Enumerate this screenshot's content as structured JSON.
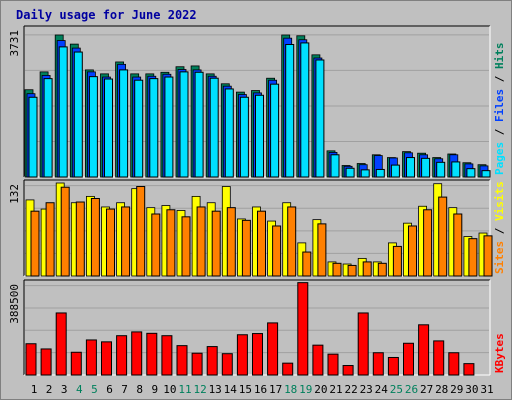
{
  "title": "Daily usage for June 2022",
  "colors": {
    "background": "#c0c0c0",
    "title": "#0000a0",
    "hits": "#00805c",
    "files": "#0040ff",
    "pages": "#00e0ff",
    "visits": "#ffff00",
    "sites": "#ff8000",
    "kbytes": "#ff0000",
    "weekday_label": "#000000",
    "weekend_label": "#00805c"
  },
  "chart_data": [
    {
      "type": "bar",
      "panel": "hits-files-pages",
      "ymax_label": "3731",
      "ylim": [
        0,
        3731
      ],
      "grid": true,
      "series_labels": [
        "Pages",
        "Files",
        "Hits"
      ],
      "series": [
        {
          "name": "Hits",
          "values": [
            2200,
            2650,
            3580,
            3350,
            2700,
            2600,
            2900,
            2600,
            2600,
            2640,
            2780,
            2800,
            2600,
            2350,
            2140,
            2180,
            2490,
            3580,
            3560,
            3080,
            660,
            290,
            340,
            560,
            490,
            640,
            600,
            490,
            580,
            360,
            310
          ]
        },
        {
          "name": "Files",
          "values": [
            2100,
            2560,
            3440,
            3250,
            2650,
            2520,
            2840,
            2520,
            2540,
            2590,
            2710,
            2700,
            2540,
            2290,
            2080,
            2120,
            2440,
            3500,
            3460,
            3000,
            620,
            270,
            310,
            540,
            480,
            610,
            560,
            460,
            560,
            330,
            280
          ]
        },
        {
          "name": "Pages",
          "values": [
            2010,
            2480,
            3280,
            3150,
            2530,
            2470,
            2700,
            2440,
            2480,
            2520,
            2650,
            2640,
            2490,
            2220,
            2010,
            2060,
            2340,
            3340,
            3380,
            2950,
            560,
            220,
            180,
            190,
            300,
            490,
            470,
            370,
            380,
            210,
            160
          ]
        }
      ]
    },
    {
      "type": "bar",
      "panel": "visits-sites",
      "ymax_label": "132",
      "ylim": [
        0,
        132
      ],
      "grid": true,
      "series_labels": [
        "Sites",
        "Visits"
      ],
      "series": [
        {
          "name": "Visits",
          "values": [
            108,
            95,
            132,
            104,
            113,
            98,
            104,
            124,
            97,
            100,
            93,
            113,
            104,
            127,
            81,
            98,
            78,
            104,
            47,
            80,
            20,
            17,
            25,
            20,
            47,
            75,
            99,
            131,
            97,
            56,
            61
          ]
        },
        {
          "name": "Sites",
          "values": [
            92,
            104,
            126,
            105,
            110,
            95,
            98,
            127,
            88,
            94,
            84,
            98,
            92,
            97,
            79,
            92,
            71,
            98,
            34,
            74,
            18,
            15,
            20,
            18,
            42,
            71,
            94,
            112,
            88,
            53,
            57
          ]
        }
      ]
    },
    {
      "type": "bar",
      "panel": "kbytes",
      "ymax_label": "388500",
      "ylim": [
        0,
        388500
      ],
      "grid": true,
      "series_labels": [
        "KBytes"
      ],
      "series": [
        {
          "name": "KBytes",
          "values": [
            132000,
            110000,
            262000,
            96000,
            148000,
            140000,
            166000,
            182000,
            176000,
            166000,
            124000,
            92000,
            120000,
            90000,
            170000,
            175000,
            220000,
            50000,
            390000,
            126000,
            88000,
            40000,
            262000,
            94000,
            74000,
            134000,
            212000,
            144000,
            94000,
            48000,
            0
          ]
        }
      ]
    }
  ],
  "x_axis": {
    "ticks": [
      "1",
      "2",
      "3",
      "4",
      "5",
      "6",
      "7",
      "8",
      "9",
      "10",
      "11",
      "12",
      "13",
      "14",
      "15",
      "16",
      "17",
      "18",
      "19",
      "20",
      "21",
      "22",
      "23",
      "24",
      "25",
      "26",
      "27",
      "28",
      "29",
      "30",
      "31"
    ],
    "weekend_days": [
      4,
      5,
      11,
      12,
      18,
      19,
      25,
      26
    ]
  }
}
